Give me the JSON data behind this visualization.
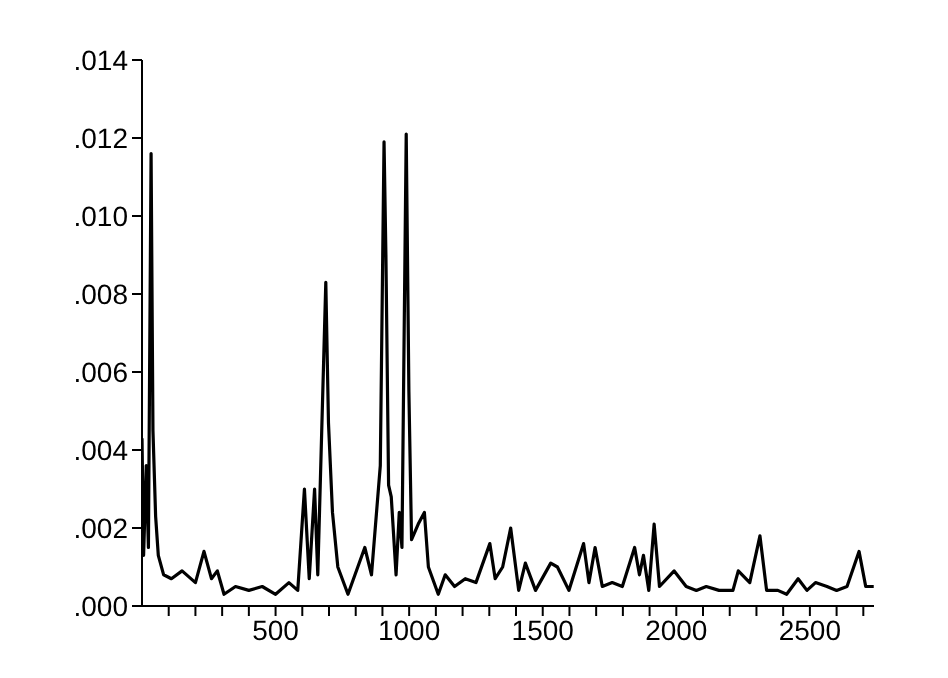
{
  "chart_data": {
    "type": "line",
    "x": [
      0,
      6,
      16,
      24,
      34,
      41,
      51,
      61,
      81,
      110,
      150,
      200,
      232,
      260,
      282,
      307,
      350,
      400,
      450,
      500,
      550,
      583,
      608,
      626,
      646,
      658,
      688,
      698,
      713,
      733,
      771,
      834,
      859,
      892,
      906,
      913,
      923,
      933,
      951,
      963,
      973,
      989,
      999,
      1009,
      1034,
      1057,
      1072,
      1109,
      1135,
      1170,
      1210,
      1250,
      1302,
      1322,
      1350,
      1380,
      1410,
      1435,
      1473,
      1530,
      1555,
      1598,
      1653,
      1673,
      1696,
      1723,
      1760,
      1798,
      1844,
      1862,
      1877,
      1897,
      1917,
      1937,
      1992,
      2037,
      2075,
      2112,
      2160,
      2212,
      2232,
      2275,
      2313,
      2338,
      2380,
      2413,
      2456,
      2489,
      2521,
      2564,
      2600,
      2639,
      2684,
      2709,
      2739
    ],
    "series": [
      {
        "color": "#000000",
        "values": [
          0.0043,
          0.0013,
          0.0036,
          0.0015,
          0.0116,
          0.0045,
          0.0023,
          0.0013,
          0.0008,
          0.0007,
          0.0009,
          0.0006,
          0.0014,
          0.0007,
          0.0009,
          0.0003,
          0.0005,
          0.0004,
          0.0005,
          0.0003,
          0.0006,
          0.0004,
          0.003,
          0.0007,
          0.003,
          0.0008,
          0.0083,
          0.0047,
          0.0024,
          0.001,
          0.0003,
          0.0015,
          0.0008,
          0.0036,
          0.0119,
          0.009,
          0.0031,
          0.0028,
          0.0008,
          0.0024,
          0.0015,
          0.0121,
          0.0055,
          0.0017,
          0.0021,
          0.0024,
          0.001,
          0.0003,
          0.0008,
          0.0005,
          0.0007,
          0.0006,
          0.0016,
          0.0007,
          0.001,
          0.002,
          0.0004,
          0.0011,
          0.0004,
          0.0011,
          0.001,
          0.0004,
          0.0016,
          0.0006,
          0.0015,
          0.0005,
          0.0006,
          0.0005,
          0.0015,
          0.0008,
          0.0013,
          0.0004,
          0.0021,
          0.0005,
          0.0009,
          0.0005,
          0.0004,
          0.0005,
          0.0004,
          0.0004,
          0.0009,
          0.0006,
          0.0018,
          0.0004,
          0.0004,
          0.0003,
          0.0007,
          0.0004,
          0.0006,
          0.0005,
          0.0004,
          0.0005,
          0.0014,
          0.0005,
          0.0005
        ]
      }
    ],
    "xlim": [
      0,
      2740
    ],
    "xticks": [
      {
        "value": 100,
        "label": null
      },
      {
        "value": 200,
        "label": null
      },
      {
        "value": 300,
        "label": null
      },
      {
        "value": 400,
        "label": null
      },
      500,
      {
        "value": 600,
        "label": null
      },
      {
        "value": 700,
        "label": null
      },
      {
        "value": 800,
        "label": null
      },
      {
        "value": 900,
        "label": null
      },
      1000,
      {
        "value": 1100,
        "label": null
      },
      {
        "value": 1200,
        "label": null
      },
      {
        "value": 1300,
        "label": null
      },
      {
        "value": 1400,
        "label": null
      },
      1500,
      {
        "value": 1600,
        "label": null
      },
      {
        "value": 1700,
        "label": null
      },
      {
        "value": 1800,
        "label": null
      },
      {
        "value": 1900,
        "label": null
      },
      2000,
      {
        "value": 2100,
        "label": null
      },
      {
        "value": 2200,
        "label": null
      },
      {
        "value": 2300,
        "label": null
      },
      {
        "value": 2400,
        "label": null
      },
      2500,
      {
        "value": 2600,
        "label": null
      },
      {
        "value": 2700,
        "label": null
      }
    ],
    "ylim": [
      0,
      0.014
    ],
    "yticks": [
      {
        "value": 0,
        "label": ".000"
      },
      {
        "value": 0.002,
        "label": ".002"
      },
      {
        "value": 0.004,
        "label": ".004"
      },
      {
        "value": 0.006,
        "label": ".006"
      },
      {
        "value": 0.008,
        "label": ".008"
      },
      {
        "value": 0.01,
        "label": ".010"
      },
      {
        "value": 0.012,
        "label": ".012"
      },
      {
        "value": 0.014,
        "label": ".014"
      }
    ],
    "grid": false,
    "legend": false,
    "marker": "none",
    "line_style": "solid"
  }
}
